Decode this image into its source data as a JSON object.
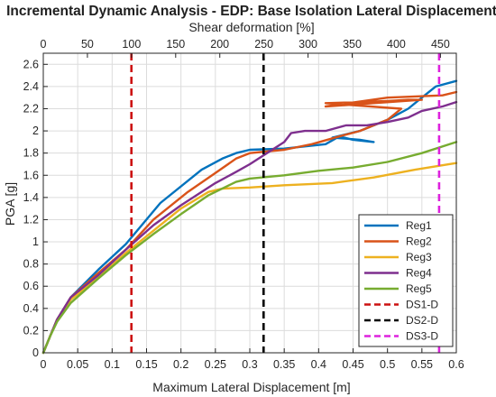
{
  "chart_data": {
    "type": "line",
    "title": "Incremental Dynamic Analysis - EDP: Base Isolation Lateral Displacement",
    "xlabel": "Maximum Lateral Displacement [m]",
    "ylabel": "PGA [g]",
    "x2label": "Shear deformation [%]",
    "xlim": [
      0,
      0.6
    ],
    "ylim": [
      0,
      2.7
    ],
    "xticks": [
      "0",
      "0.05",
      "0.1",
      "0.15",
      "0.2",
      "0.25",
      "0.3",
      "0.35",
      "0.4",
      "0.45",
      "0.5",
      "0.55",
      "0.6"
    ],
    "yticks": [
      "0",
      "0.2",
      "0.4",
      "0.6",
      "0.8",
      "1",
      "1.2",
      "1.4",
      "1.6",
      "1.8",
      "2",
      "2.2",
      "2.4",
      "2.6"
    ],
    "x2ticks": [
      "0",
      "50",
      "100",
      "150",
      "200",
      "250",
      "300",
      "350",
      "400",
      "450"
    ],
    "grid": true,
    "legend_position": "bottom-right",
    "series": [
      {
        "name": "Reg1",
        "color": "#0072BD",
        "style": "solid",
        "points": [
          [
            0,
            0
          ],
          [
            0.01,
            0.15
          ],
          [
            0.02,
            0.3
          ],
          [
            0.04,
            0.5
          ],
          [
            0.08,
            0.75
          ],
          [
            0.12,
            0.98
          ],
          [
            0.17,
            1.35
          ],
          [
            0.23,
            1.65
          ],
          [
            0.26,
            1.75
          ],
          [
            0.28,
            1.8
          ],
          [
            0.3,
            1.83
          ],
          [
            0.35,
            1.84
          ],
          [
            0.41,
            1.88
          ],
          [
            0.43,
            1.95
          ],
          [
            0.45,
            1.92
          ],
          [
            0.48,
            1.9
          ],
          [
            0.46,
            1.92
          ],
          [
            0.42,
            1.94
          ],
          [
            0.46,
            2.0
          ],
          [
            0.5,
            2.1
          ],
          [
            0.53,
            2.2
          ],
          [
            0.55,
            2.3
          ],
          [
            0.57,
            2.4
          ],
          [
            0.6,
            2.45
          ]
        ]
      },
      {
        "name": "Reg2",
        "color": "#D95319",
        "style": "solid",
        "points": [
          [
            0,
            0
          ],
          [
            0.01,
            0.15
          ],
          [
            0.02,
            0.3
          ],
          [
            0.04,
            0.5
          ],
          [
            0.08,
            0.72
          ],
          [
            0.12,
            0.93
          ],
          [
            0.16,
            1.2
          ],
          [
            0.21,
            1.45
          ],
          [
            0.25,
            1.62
          ],
          [
            0.28,
            1.75
          ],
          [
            0.3,
            1.8
          ],
          [
            0.35,
            1.83
          ],
          [
            0.39,
            1.88
          ],
          [
            0.43,
            1.95
          ],
          [
            0.46,
            2.0
          ],
          [
            0.48,
            2.05
          ],
          [
            0.5,
            2.1
          ],
          [
            0.52,
            2.2
          ],
          [
            0.41,
            2.25
          ],
          [
            0.46,
            2.26
          ],
          [
            0.5,
            2.27
          ],
          [
            0.53,
            2.28
          ],
          [
            0.55,
            2.28
          ],
          [
            0.41,
            2.22
          ],
          [
            0.5,
            2.3
          ],
          [
            0.58,
            2.32
          ],
          [
            0.6,
            2.35
          ]
        ]
      },
      {
        "name": "Reg3",
        "color": "#EDB120",
        "style": "solid",
        "points": [
          [
            0,
            0
          ],
          [
            0.01,
            0.15
          ],
          [
            0.02,
            0.3
          ],
          [
            0.04,
            0.48
          ],
          [
            0.08,
            0.68
          ],
          [
            0.12,
            0.9
          ],
          [
            0.16,
            1.1
          ],
          [
            0.2,
            1.3
          ],
          [
            0.24,
            1.45
          ],
          [
            0.26,
            1.48
          ],
          [
            0.3,
            1.49
          ],
          [
            0.35,
            1.51
          ],
          [
            0.42,
            1.53
          ],
          [
            0.48,
            1.58
          ],
          [
            0.54,
            1.65
          ],
          [
            0.6,
            1.71
          ]
        ]
      },
      {
        "name": "Reg4",
        "color": "#7E2F8E",
        "style": "solid",
        "points": [
          [
            0,
            0
          ],
          [
            0.01,
            0.15
          ],
          [
            0.02,
            0.3
          ],
          [
            0.04,
            0.5
          ],
          [
            0.08,
            0.7
          ],
          [
            0.12,
            0.93
          ],
          [
            0.16,
            1.15
          ],
          [
            0.2,
            1.33
          ],
          [
            0.25,
            1.53
          ],
          [
            0.28,
            1.63
          ],
          [
            0.3,
            1.7
          ],
          [
            0.32,
            1.78
          ],
          [
            0.35,
            1.9
          ],
          [
            0.36,
            1.98
          ],
          [
            0.38,
            2.0
          ],
          [
            0.41,
            2.0
          ],
          [
            0.44,
            2.05
          ],
          [
            0.47,
            2.05
          ],
          [
            0.5,
            2.08
          ],
          [
            0.53,
            2.12
          ],
          [
            0.55,
            2.18
          ],
          [
            0.58,
            2.22
          ],
          [
            0.6,
            2.26
          ]
        ]
      },
      {
        "name": "Reg5",
        "color": "#77AC30",
        "style": "solid",
        "points": [
          [
            0,
            0
          ],
          [
            0.01,
            0.15
          ],
          [
            0.02,
            0.28
          ],
          [
            0.04,
            0.45
          ],
          [
            0.08,
            0.67
          ],
          [
            0.12,
            0.88
          ],
          [
            0.16,
            1.07
          ],
          [
            0.2,
            1.25
          ],
          [
            0.24,
            1.42
          ],
          [
            0.28,
            1.54
          ],
          [
            0.3,
            1.57
          ],
          [
            0.35,
            1.6
          ],
          [
            0.4,
            1.64
          ],
          [
            0.45,
            1.67
          ],
          [
            0.5,
            1.72
          ],
          [
            0.55,
            1.8
          ],
          [
            0.6,
            1.9
          ]
        ]
      },
      {
        "name": "DS1-D",
        "color": "#CC1111",
        "style": "dashed",
        "x_value": 0.128
      },
      {
        "name": "DS2-D",
        "color": "#000000",
        "style": "dashed",
        "x_value": 0.32
      },
      {
        "name": "DS3-D",
        "color": "#DD22DD",
        "style": "dashed",
        "x_value": 0.575
      }
    ]
  }
}
